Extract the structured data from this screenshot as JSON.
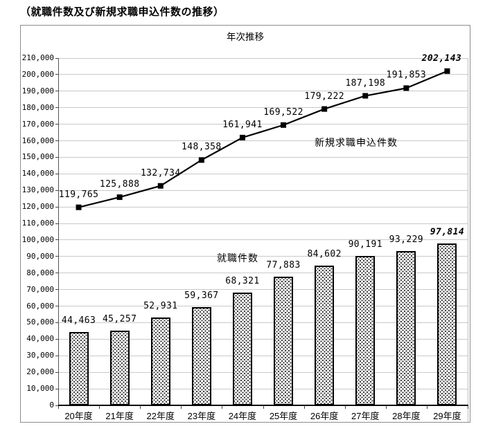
{
  "page_title": "（就職件数及び新規求職申込件数の推移）",
  "chart_data": {
    "type": "combo",
    "title": "年次推移",
    "categories": [
      "20年度",
      "21年度",
      "22年度",
      "23年度",
      "24年度",
      "25年度",
      "26年度",
      "27年度",
      "28年度",
      "29年度"
    ],
    "series": [
      {
        "name": "新規求職申込件数",
        "type": "line",
        "values": [
          119765,
          125888,
          132734,
          148358,
          161941,
          169522,
          179222,
          187198,
          191853,
          202143
        ]
      },
      {
        "name": "就職件数",
        "type": "bar",
        "values": [
          44463,
          45257,
          52931,
          59367,
          68321,
          77883,
          84602,
          90191,
          93229,
          97814
        ]
      }
    ],
    "ylim": [
      0,
      210000
    ],
    "ytick_interval": 10000,
    "grid": true,
    "legend_position": "inline-annotations",
    "emphasis": "last value of each series shown bold italic",
    "colors": {
      "line": "#000000",
      "marker": "#000000",
      "bar_border": "#000000",
      "bar_fill": "dotted-pattern",
      "grid": "#c9c9c9",
      "text": "#000000"
    }
  }
}
